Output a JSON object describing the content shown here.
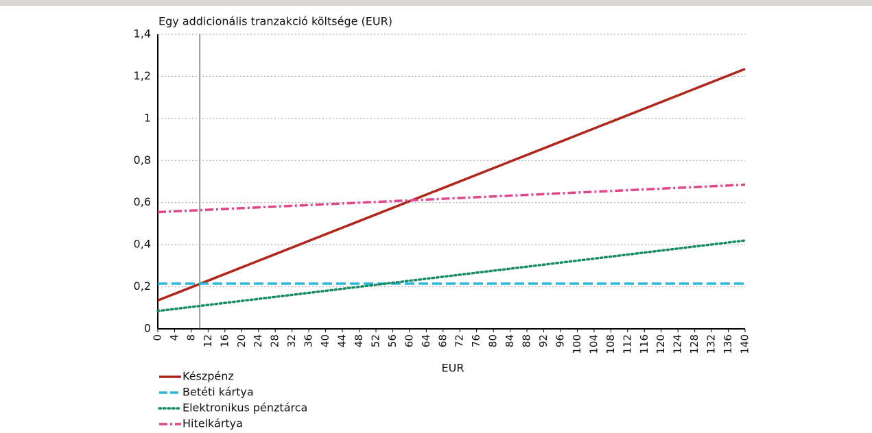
{
  "chart_data": {
    "type": "line",
    "title": "Egy addicionális tranzakció költsége (EUR)",
    "x_label": "EUR",
    "x": [
      0,
      140
    ],
    "series": [
      {
        "name": "Készpénz",
        "color": "#b1261a",
        "dash": "solid",
        "values": [
          0.135,
          1.235
        ]
      },
      {
        "name": "Betéti kártya",
        "color": "#2db7da",
        "dash": "dashed",
        "values": [
          0.215,
          0.215
        ]
      },
      {
        "name": "Elektronikus pénztárca",
        "color": "#178a68",
        "dash": "dotted",
        "values": [
          0.085,
          0.42
        ]
      },
      {
        "name": "Hitelkártya",
        "color": "#e1458b",
        "dash": "dashdot",
        "values": [
          0.555,
          0.685
        ]
      }
    ],
    "vline": 10,
    "xlim": [
      0,
      140
    ],
    "xticks": [
      0,
      4,
      8,
      12,
      16,
      20,
      24,
      28,
      32,
      36,
      40,
      44,
      48,
      52,
      56,
      60,
      64,
      68,
      72,
      76,
      80,
      84,
      88,
      92,
      96,
      100,
      104,
      108,
      112,
      116,
      120,
      124,
      128,
      132,
      136,
      140
    ],
    "ylim": [
      0,
      1.4
    ],
    "yticks": [
      0,
      {
        "value": 0.2,
        "label": "0,2"
      },
      {
        "value": 0.4,
        "label": "0,4"
      },
      {
        "value": 0.6,
        "label": "0,6"
      },
      {
        "value": 0.8,
        "label": "0,8"
      },
      1,
      {
        "value": 1.2,
        "label": "1,2"
      },
      {
        "value": 1.4,
        "label": "1,4"
      }
    ],
    "grid": true,
    "legend": "bottom-left"
  }
}
